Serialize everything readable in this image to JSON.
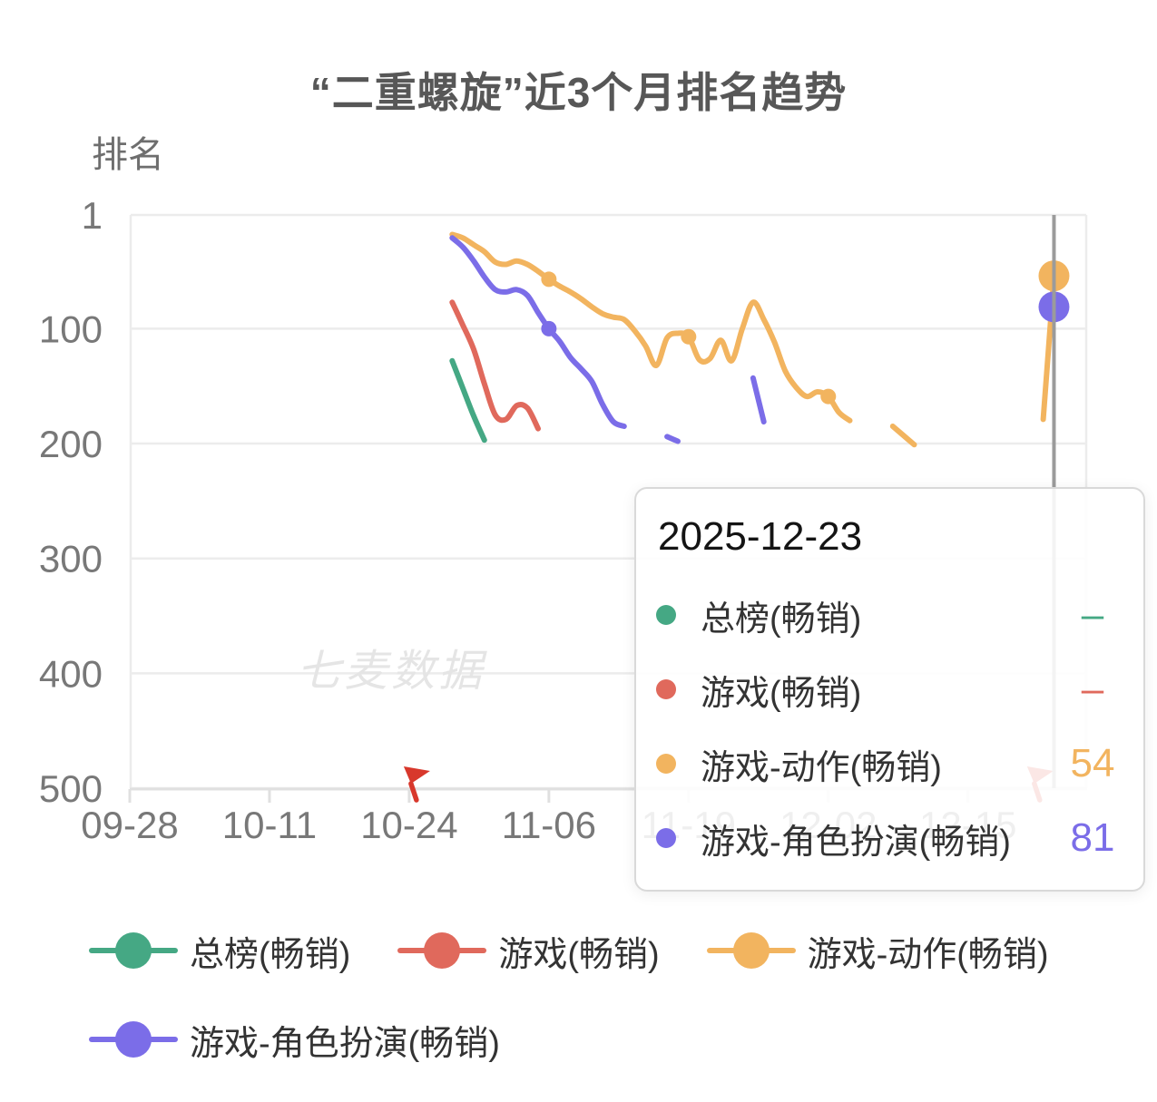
{
  "page": {
    "title": "“二重螺旋”近3个月排名趋势"
  },
  "chart_data": {
    "type": "line",
    "title": "“二重螺旋”近3个月排名趋势",
    "xlabel": "",
    "ylabel": "排名",
    "y_axis": {
      "ticks": [
        1,
        100,
        200,
        300,
        400,
        500
      ],
      "tick_labels": [
        "1",
        "100",
        "200",
        "300",
        "400",
        "500"
      ],
      "inverted": true,
      "range": [
        1,
        500
      ]
    },
    "x_axis": {
      "range": [
        "09-28",
        "12-26"
      ],
      "tick_labels": [
        "09-28",
        "10-11",
        "10-24",
        "11-06",
        "11-19",
        "12-02",
        "12-15"
      ]
    },
    "grid": true,
    "legend_position": "bottom",
    "watermark": "七麦数据",
    "hover_date": "12-23",
    "series": [
      {
        "name": "总榜(畅销)",
        "slug": "overall-bestseller",
        "color": "#45A884",
        "segments": [
          [
            [
              "10-28",
              128
            ],
            [
              "10-29",
              152
            ],
            [
              "10-30",
              176
            ],
            [
              "10-31",
              197
            ]
          ]
        ],
        "tick_markers": [],
        "end_point": null
      },
      {
        "name": "游戏(畅销)",
        "slug": "game-bestseller",
        "color": "#E0695C",
        "segments": [
          [
            [
              "10-28",
              77
            ],
            [
              "10-29",
              97
            ],
            [
              "10-30",
              118
            ],
            [
              "10-31",
              148
            ],
            [
              "11-01",
              175
            ],
            [
              "11-02",
              179
            ],
            [
              "11-03",
              167
            ],
            [
              "11-04",
              169
            ],
            [
              "11-05",
              187
            ]
          ]
        ],
        "tick_markers": [],
        "end_point": null
      },
      {
        "name": "游戏-动作(畅销)",
        "slug": "game-action-bestseller",
        "color": "#F2B45F",
        "segments": [
          [
            [
              "10-28",
              18
            ],
            [
              "10-29",
              21
            ],
            [
              "10-30",
              27
            ],
            [
              "10-31",
              33
            ],
            [
              "11-01",
              42
            ],
            [
              "11-02",
              44
            ],
            [
              "11-03",
              41
            ],
            [
              "11-04",
              44
            ],
            [
              "11-05",
              50
            ],
            [
              "11-06",
              57
            ],
            [
              "11-07",
              63
            ],
            [
              "11-08",
              68
            ],
            [
              "11-09",
              74
            ],
            [
              "11-10",
              81
            ],
            [
              "11-11",
              87
            ],
            [
              "11-12",
              90
            ],
            [
              "11-13",
              92
            ],
            [
              "11-14",
              102
            ],
            [
              "11-15",
              115
            ],
            [
              "11-16",
              132
            ],
            [
              "11-17",
              108
            ],
            [
              "11-18",
              104
            ],
            [
              "11-19",
              107
            ],
            [
              "11-20",
              127
            ],
            [
              "11-21",
              126
            ],
            [
              "11-22",
              110
            ],
            [
              "11-23",
              128
            ],
            [
              "11-24",
              100
            ],
            [
              "11-25",
              77
            ],
            [
              "11-26",
              92
            ],
            [
              "11-27",
              112
            ],
            [
              "11-28",
              137
            ],
            [
              "11-29",
              151
            ],
            [
              "11-30",
              159
            ],
            [
              "12-01",
              155
            ],
            [
              "12-02",
              159
            ],
            [
              "12-03",
              173
            ],
            [
              "12-04",
              180
            ]
          ],
          [
            [
              "12-08",
              185
            ],
            [
              "12-09",
              193
            ],
            [
              "12-10",
              201
            ]
          ],
          [
            [
              "12-22",
              179
            ],
            [
              "12-23",
              54
            ]
          ]
        ],
        "tick_markers": [
          "11-06",
          "11-19",
          "12-02"
        ],
        "end_point": {
          "date": "12-23",
          "rank": 54
        }
      },
      {
        "name": "游戏-角色扮演(畅销)",
        "slug": "game-rpg-bestseller",
        "color": "#7B6DE8",
        "segments": [
          [
            [
              "10-28",
              21
            ],
            [
              "10-29",
              29
            ],
            [
              "10-30",
              41
            ],
            [
              "10-31",
              55
            ],
            [
              "11-01",
              66
            ],
            [
              "11-02",
              68
            ],
            [
              "11-03",
              66
            ],
            [
              "11-04",
              71
            ],
            [
              "11-05",
              86
            ],
            [
              "11-06",
              100
            ],
            [
              "11-07",
              111
            ],
            [
              "11-08",
              125
            ],
            [
              "11-09",
              135
            ],
            [
              "11-10",
              146
            ],
            [
              "11-11",
              166
            ],
            [
              "11-12",
              181
            ],
            [
              "11-13",
              185
            ]
          ],
          [
            [
              "11-17",
              194
            ],
            [
              "11-18",
              198
            ]
          ],
          [
            [
              "11-25",
              143
            ],
            [
              "11-26",
              181
            ]
          ],
          [
            [
              "12-23",
              81
            ]
          ]
        ],
        "tick_markers": [
          "11-06"
        ],
        "end_point": {
          "date": "12-23",
          "rank": 81
        }
      }
    ],
    "flags": [
      {
        "date": "10-24"
      },
      {
        "date": "12-21"
      }
    ]
  },
  "tooltip": {
    "date": "2025-12-23",
    "rows": [
      {
        "label": "总榜(畅销)",
        "slug": "overall-bestseller",
        "value": "–",
        "color": "#45A884"
      },
      {
        "label": "游戏(畅销)",
        "slug": "game-bestseller",
        "value": "–",
        "color": "#E0695C"
      },
      {
        "label": "游戏-动作(畅销)",
        "slug": "game-action-bestseller",
        "value": "54",
        "color": "#F2B45F"
      },
      {
        "label": "游戏-角色扮演(畅销)",
        "slug": "game-rpg-bestseller",
        "value": "81",
        "color": "#7B6DE8"
      }
    ]
  },
  "legend": {
    "rows": [
      [
        0,
        1,
        2
      ],
      [
        3
      ]
    ]
  },
  "style_colors": {
    "grid": "#ECECEC",
    "axis": "#E0E0E0",
    "axis_label": "#787878",
    "crosshair": "#9B9B9B",
    "flag_red": "#D8382C",
    "watermark": "#E5E5E5"
  }
}
